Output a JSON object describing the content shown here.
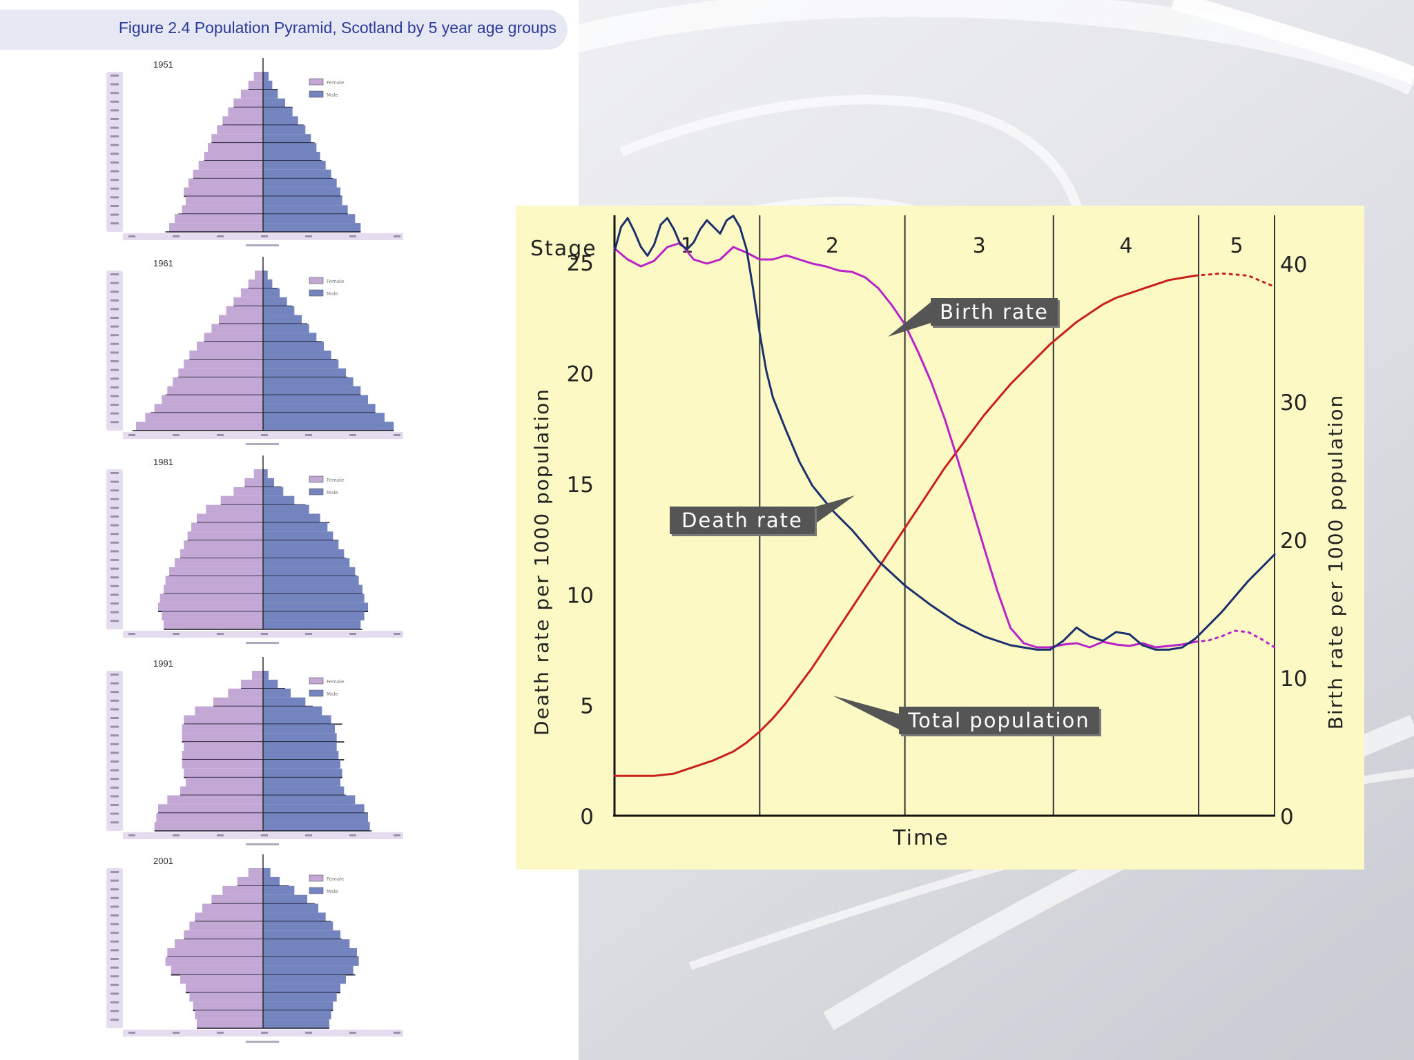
{
  "figure_caption": "Figure 2.4 Population Pyramid, Scotland by 5 year age groups",
  "colors": {
    "female": "#c3a8d6",
    "male": "#7384bf",
    "panel_bg": "#fdf9c4",
    "birth_rate": "#b822c8",
    "death_rate": "#1a2f6e",
    "total_population": "#c82018",
    "caption_text": "#2a3b9a"
  },
  "chart_data": [
    {
      "type": "bar",
      "subtype": "population-pyramid",
      "title": "1951",
      "legend": [
        "Female",
        "Male"
      ],
      "female": [
        1.0,
        1.6,
        2.4,
        3.2,
        3.8,
        4.4,
        5.0,
        5.6,
        6.0,
        6.4,
        7.0,
        7.6,
        8.1,
        8.6,
        8.4,
        8.8,
        9.6,
        10.2
      ],
      "male": [
        0.6,
        1.0,
        1.6,
        2.4,
        3.2,
        3.8,
        4.6,
        5.2,
        5.8,
        6.2,
        6.8,
        7.4,
        8.0,
        8.4,
        8.6,
        9.2,
        10.0,
        10.6
      ],
      "xlim": [
        -15,
        15
      ]
    },
    {
      "type": "bar",
      "subtype": "population-pyramid",
      "title": "1961",
      "legend": [
        "Female",
        "Male"
      ],
      "female": [
        0.9,
        1.6,
        2.4,
        3.2,
        4.0,
        4.8,
        5.6,
        6.4,
        7.2,
        8.0,
        8.6,
        9.2,
        9.8,
        10.4,
        11.0,
        11.8,
        12.8,
        13.8
      ],
      "male": [
        0.5,
        1.0,
        1.8,
        2.6,
        3.4,
        4.2,
        5.0,
        5.8,
        6.6,
        7.4,
        8.2,
        9.0,
        9.8,
        10.6,
        11.4,
        12.2,
        13.2,
        14.2
      ],
      "xlim": [
        -15,
        15
      ]
    },
    {
      "type": "bar",
      "subtype": "population-pyramid",
      "title": "1981",
      "legend": [
        "Female",
        "Male"
      ],
      "female": [
        1.0,
        2.0,
        3.2,
        4.6,
        6.2,
        7.2,
        7.8,
        8.2,
        8.6,
        9.0,
        9.6,
        10.2,
        10.6,
        10.8,
        11.2,
        11.4,
        11.0,
        10.8
      ],
      "male": [
        0.5,
        1.2,
        2.2,
        3.4,
        5.0,
        6.2,
        7.0,
        7.6,
        8.2,
        8.8,
        9.4,
        10.0,
        10.4,
        10.8,
        11.0,
        11.4,
        11.0,
        10.6
      ],
      "xlim": [
        -15,
        15
      ]
    },
    {
      "type": "bar",
      "subtype": "population-pyramid",
      "title": "1991",
      "legend": [
        "Female",
        "Male"
      ],
      "female": [
        1.2,
        2.4,
        3.8,
        5.4,
        7.4,
        8.6,
        8.8,
        8.8,
        8.6,
        8.8,
        8.8,
        8.6,
        8.4,
        9.0,
        10.4,
        11.4,
        11.6,
        11.8
      ],
      "male": [
        0.6,
        1.6,
        3.0,
        4.6,
        6.4,
        7.4,
        7.8,
        8.0,
        8.0,
        8.2,
        8.4,
        8.6,
        8.4,
        8.8,
        10.0,
        11.0,
        11.4,
        11.6
      ],
      "xlim": [
        -15,
        15
      ]
    },
    {
      "type": "bar",
      "subtype": "population-pyramid",
      "title": "2001",
      "legend": [
        "Female",
        "Male"
      ],
      "female": [
        1.6,
        2.8,
        4.4,
        5.6,
        6.6,
        7.4,
        8.0,
        8.6,
        9.6,
        10.4,
        10.6,
        10.0,
        9.0,
        8.4,
        8.0,
        7.6,
        7.4,
        7.2
      ],
      "male": [
        0.8,
        1.8,
        3.4,
        4.8,
        6.0,
        6.8,
        7.6,
        8.4,
        9.4,
        10.2,
        10.4,
        9.8,
        9.0,
        8.4,
        8.0,
        7.6,
        7.4,
        7.2
      ],
      "xlim": [
        -15,
        15
      ]
    },
    {
      "type": "line",
      "title": "",
      "stages": [
        "1",
        "2",
        "3",
        "4",
        "5"
      ],
      "stage_header": "Stage",
      "xlabel": "Time",
      "ylabel_left": "Death rate per 1000 population",
      "ylabel_right": "Birth rate per 1000 population",
      "yticks_left": [
        0,
        5,
        10,
        15,
        20,
        25
      ],
      "yticks_right": [
        0,
        10,
        20,
        30,
        40
      ],
      "ylim_left": [
        0,
        27
      ],
      "ylim_right": [
        0,
        43.3
      ],
      "xlim": [
        0,
        100
      ],
      "stage_boundaries": [
        0,
        22,
        44,
        66.5,
        88.5,
        100
      ],
      "annotations": [
        "Birth rate",
        "Death rate",
        "Total population"
      ],
      "series": [
        {
          "name": "Birth rate",
          "axis": "right",
          "x": [
            0,
            2,
            4,
            6,
            8,
            10,
            12,
            14,
            16,
            18,
            20,
            22,
            24,
            26,
            28,
            30,
            32,
            34,
            36,
            38,
            40,
            42,
            44,
            46,
            48,
            50,
            52,
            54,
            56,
            58,
            60,
            62,
            64,
            66,
            68,
            70,
            72,
            74,
            76,
            78,
            80,
            82,
            84,
            86,
            88
          ],
          "y": [
            41.1,
            40.3,
            39.8,
            40.2,
            41.2,
            41.5,
            40.3,
            40.0,
            40.3,
            41.2,
            40.8,
            40.3,
            40.3,
            40.6,
            40.3,
            40.0,
            39.8,
            39.5,
            39.4,
            39.0,
            38.2,
            37.0,
            35.6,
            33.6,
            31.4,
            28.8,
            25.8,
            22.6,
            19.4,
            16.3,
            13.6,
            12.5,
            12.2,
            12.2,
            12.4,
            12.5,
            12.2,
            12.6,
            12.4,
            12.3,
            12.5,
            12.2,
            12.3,
            12.4,
            12.6
          ]
        },
        {
          "name": "Birth rate (projected)",
          "axis": "right",
          "x": [
            88,
            90,
            92,
            94,
            96,
            98,
            100
          ],
          "y": [
            12.6,
            12.7,
            13.0,
            13.4,
            13.3,
            12.8,
            12.2
          ]
        },
        {
          "name": "Death rate",
          "axis": "left",
          "x": [
            0,
            1,
            2,
            3,
            4,
            5,
            6,
            7,
            8,
            9,
            10,
            11,
            12,
            13,
            14,
            15,
            16,
            17,
            18,
            19,
            20,
            21,
            22,
            23,
            24,
            26,
            28,
            30,
            33,
            36,
            40,
            44,
            48,
            52,
            56,
            60,
            64,
            66,
            68,
            70,
            72,
            74,
            76,
            78,
            80,
            82,
            84,
            86,
            88,
            90,
            92,
            94,
            96,
            98,
            100
          ],
          "y": [
            25.5,
            26.6,
            27.0,
            26.4,
            25.7,
            25.3,
            25.8,
            26.7,
            27.0,
            26.5,
            25.8,
            25.6,
            25.9,
            26.5,
            26.9,
            26.6,
            26.3,
            26.9,
            27.1,
            26.6,
            25.6,
            23.8,
            21.8,
            20.1,
            18.9,
            17.4,
            16.0,
            14.9,
            13.8,
            12.9,
            11.5,
            10.4,
            9.5,
            8.7,
            8.1,
            7.7,
            7.5,
            7.5,
            7.9,
            8.5,
            8.1,
            7.9,
            8.3,
            8.2,
            7.7,
            7.5,
            7.5,
            7.6,
            8.0,
            8.6,
            9.2,
            9.9,
            10.6,
            11.2,
            11.8
          ]
        },
        {
          "name": "Total population",
          "axis": "left",
          "x": [
            0,
            3,
            6,
            9,
            12,
            15,
            18,
            20,
            22,
            24,
            26,
            28,
            30,
            32,
            34,
            36,
            38,
            40,
            42,
            44,
            46,
            48,
            50,
            52,
            54,
            56,
            58,
            60,
            62,
            64,
            66,
            68,
            70,
            72,
            74,
            76,
            78,
            80,
            82,
            84,
            86,
            88
          ],
          "y": [
            1.8,
            1.8,
            1.8,
            1.9,
            2.2,
            2.5,
            2.9,
            3.3,
            3.8,
            4.4,
            5.1,
            5.9,
            6.7,
            7.6,
            8.5,
            9.4,
            10.3,
            11.2,
            12.1,
            13.0,
            13.9,
            14.8,
            15.7,
            16.5,
            17.3,
            18.1,
            18.8,
            19.5,
            20.1,
            20.7,
            21.3,
            21.8,
            22.3,
            22.7,
            23.1,
            23.4,
            23.6,
            23.8,
            24.0,
            24.2,
            24.3,
            24.4
          ]
        },
        {
          "name": "Total population (projected)",
          "axis": "left",
          "x": [
            88,
            92,
            96,
            100
          ],
          "y": [
            24.4,
            24.5,
            24.4,
            23.9
          ]
        }
      ]
    }
  ]
}
